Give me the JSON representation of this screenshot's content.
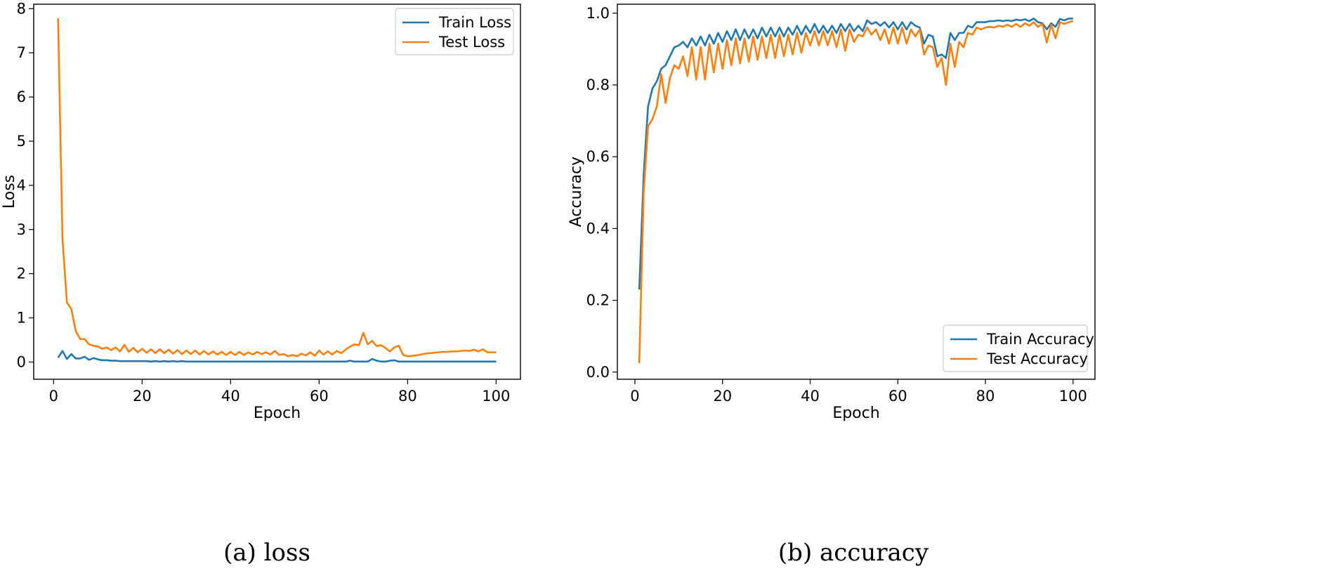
{
  "colors": {
    "train": "#1f77b4",
    "test": "#ff7f0e",
    "axis": "#000000",
    "background": "#ffffff"
  },
  "chart_data": [
    {
      "type": "line",
      "caption": "(a) loss",
      "xlabel": "Epoch",
      "ylabel": "Loss",
      "xlim": [
        -4.5,
        105.5
      ],
      "ylim": [
        -0.39,
        8.1
      ],
      "xticks": [
        0,
        20,
        40,
        60,
        80,
        100
      ],
      "yticks": [
        0,
        1,
        2,
        3,
        4,
        5,
        6,
        7,
        8
      ],
      "legend_position": "upper-right",
      "x": [
        1,
        2,
        3,
        4,
        5,
        6,
        7,
        8,
        9,
        10,
        11,
        12,
        13,
        14,
        15,
        16,
        17,
        18,
        19,
        20,
        21,
        22,
        23,
        24,
        25,
        26,
        27,
        28,
        29,
        30,
        31,
        32,
        33,
        34,
        35,
        36,
        37,
        38,
        39,
        40,
        41,
        42,
        43,
        44,
        45,
        46,
        47,
        48,
        49,
        50,
        51,
        52,
        53,
        54,
        55,
        56,
        57,
        58,
        59,
        60,
        61,
        62,
        63,
        64,
        65,
        66,
        67,
        68,
        69,
        70,
        71,
        72,
        73,
        74,
        75,
        76,
        77,
        78,
        79,
        80,
        81,
        82,
        83,
        84,
        85,
        86,
        87,
        88,
        89,
        90,
        91,
        92,
        93,
        94,
        95,
        96,
        97,
        98,
        99,
        100
      ],
      "series": [
        {
          "name": "Train Loss",
          "color_key": "train",
          "values": [
            0.1,
            0.25,
            0.07,
            0.18,
            0.08,
            0.08,
            0.12,
            0.05,
            0.09,
            0.06,
            0.04,
            0.04,
            0.03,
            0.03,
            0.02,
            0.02,
            0.02,
            0.02,
            0.02,
            0.02,
            0.02,
            0.01,
            0.02,
            0.01,
            0.02,
            0.01,
            0.02,
            0.01,
            0.02,
            0.01,
            0.01,
            0.01,
            0.01,
            0.01,
            0.01,
            0.01,
            0.01,
            0.01,
            0.01,
            0.01,
            0.01,
            0.01,
            0.01,
            0.01,
            0.01,
            0.01,
            0.01,
            0.01,
            0.01,
            0.01,
            0.01,
            0.01,
            0.01,
            0.01,
            0.01,
            0.01,
            0.01,
            0.01,
            0.01,
            0.01,
            0.01,
            0.01,
            0.01,
            0.01,
            0.01,
            0.01,
            0.03,
            0.01,
            0.01,
            0.01,
            0.01,
            0.07,
            0.03,
            0.01,
            0.01,
            0.03,
            0.04,
            0.01,
            0.01,
            0.01,
            0.01,
            0.01,
            0.01,
            0.01,
            0.01,
            0.01,
            0.01,
            0.01,
            0.01,
            0.01,
            0.01,
            0.01,
            0.01,
            0.01,
            0.01,
            0.01,
            0.01,
            0.01,
            0.01,
            0.01
          ]
        },
        {
          "name": "Test Loss",
          "color_key": "test",
          "values": [
            7.78,
            2.8,
            1.35,
            1.2,
            0.7,
            0.52,
            0.52,
            0.4,
            0.37,
            0.35,
            0.3,
            0.33,
            0.27,
            0.33,
            0.24,
            0.39,
            0.23,
            0.32,
            0.22,
            0.3,
            0.21,
            0.29,
            0.2,
            0.29,
            0.2,
            0.28,
            0.19,
            0.27,
            0.18,
            0.26,
            0.18,
            0.26,
            0.17,
            0.25,
            0.17,
            0.24,
            0.17,
            0.23,
            0.16,
            0.23,
            0.16,
            0.23,
            0.16,
            0.22,
            0.17,
            0.23,
            0.18,
            0.22,
            0.17,
            0.25,
            0.16,
            0.18,
            0.13,
            0.16,
            0.13,
            0.19,
            0.15,
            0.22,
            0.14,
            0.26,
            0.17,
            0.24,
            0.17,
            0.25,
            0.2,
            0.28,
            0.35,
            0.4,
            0.38,
            0.66,
            0.4,
            0.48,
            0.36,
            0.38,
            0.32,
            0.24,
            0.33,
            0.37,
            0.16,
            0.13,
            0.14,
            0.15,
            0.17,
            0.19,
            0.2,
            0.21,
            0.22,
            0.23,
            0.23,
            0.24,
            0.24,
            0.25,
            0.26,
            0.25,
            0.28,
            0.24,
            0.29,
            0.22,
            0.22,
            0.22
          ]
        }
      ]
    },
    {
      "type": "line",
      "caption": "(b) accuracy",
      "xlabel": "Epoch",
      "ylabel": "Accuracy",
      "xlim": [
        -4.0,
        105.0
      ],
      "ylim": [
        -0.02,
        1.025
      ],
      "xticks": [
        0,
        20,
        40,
        60,
        80,
        100
      ],
      "yticks": [
        0.0,
        0.2,
        0.4,
        0.6,
        0.8,
        1.0
      ],
      "ytick_labels": [
        "0.0",
        "0.2",
        "0.4",
        "0.6",
        "0.8",
        "1.0"
      ],
      "legend_position": "lower-right",
      "x": [
        1,
        2,
        3,
        4,
        5,
        6,
        7,
        8,
        9,
        10,
        11,
        12,
        13,
        14,
        15,
        16,
        17,
        18,
        19,
        20,
        21,
        22,
        23,
        24,
        25,
        26,
        27,
        28,
        29,
        30,
        31,
        32,
        33,
        34,
        35,
        36,
        37,
        38,
        39,
        40,
        41,
        42,
        43,
        44,
        45,
        46,
        47,
        48,
        49,
        50,
        51,
        52,
        53,
        54,
        55,
        56,
        57,
        58,
        59,
        60,
        61,
        62,
        63,
        64,
        65,
        66,
        67,
        68,
        69,
        70,
        71,
        72,
        73,
        74,
        75,
        76,
        77,
        78,
        79,
        80,
        81,
        82,
        83,
        84,
        85,
        86,
        87,
        88,
        89,
        90,
        91,
        92,
        93,
        94,
        95,
        96,
        97,
        98,
        99,
        100
      ],
      "series": [
        {
          "name": "Train Accuracy",
          "color_key": "train",
          "values": [
            0.23,
            0.55,
            0.74,
            0.79,
            0.81,
            0.845,
            0.855,
            0.88,
            0.905,
            0.91,
            0.92,
            0.905,
            0.93,
            0.91,
            0.935,
            0.91,
            0.94,
            0.915,
            0.945,
            0.92,
            0.95,
            0.925,
            0.955,
            0.925,
            0.955,
            0.93,
            0.955,
            0.93,
            0.96,
            0.935,
            0.96,
            0.935,
            0.96,
            0.935,
            0.96,
            0.94,
            0.965,
            0.94,
            0.965,
            0.945,
            0.97,
            0.945,
            0.965,
            0.945,
            0.965,
            0.945,
            0.97,
            0.95,
            0.97,
            0.95,
            0.965,
            0.95,
            0.98,
            0.97,
            0.975,
            0.965,
            0.975,
            0.96,
            0.975,
            0.955,
            0.975,
            0.955,
            0.975,
            0.965,
            0.96,
            0.915,
            0.94,
            0.935,
            0.88,
            0.885,
            0.875,
            0.945,
            0.925,
            0.945,
            0.945,
            0.965,
            0.96,
            0.975,
            0.975,
            0.975,
            0.978,
            0.978,
            0.98,
            0.978,
            0.98,
            0.978,
            0.982,
            0.98,
            0.983,
            0.978,
            0.985,
            0.975,
            0.972,
            0.955,
            0.972,
            0.962,
            0.984,
            0.98,
            0.985,
            0.985
          ]
        },
        {
          "name": "Test Accuracy",
          "color_key": "test",
          "values": [
            0.025,
            0.5,
            0.685,
            0.705,
            0.74,
            0.83,
            0.75,
            0.82,
            0.855,
            0.845,
            0.88,
            0.825,
            0.905,
            0.815,
            0.905,
            0.815,
            0.915,
            0.835,
            0.915,
            0.845,
            0.925,
            0.855,
            0.93,
            0.86,
            0.93,
            0.865,
            0.935,
            0.87,
            0.935,
            0.875,
            0.94,
            0.875,
            0.94,
            0.88,
            0.94,
            0.885,
            0.945,
            0.89,
            0.945,
            0.91,
            0.95,
            0.91,
            0.95,
            0.91,
            0.95,
            0.905,
            0.955,
            0.895,
            0.955,
            0.92,
            0.94,
            0.935,
            0.96,
            0.94,
            0.955,
            0.925,
            0.955,
            0.915,
            0.96,
            0.915,
            0.96,
            0.915,
            0.955,
            0.935,
            0.955,
            0.885,
            0.91,
            0.905,
            0.85,
            0.875,
            0.8,
            0.915,
            0.85,
            0.92,
            0.905,
            0.945,
            0.94,
            0.96,
            0.955,
            0.96,
            0.962,
            0.96,
            0.965,
            0.962,
            0.968,
            0.962,
            0.97,
            0.962,
            0.972,
            0.965,
            0.975,
            0.962,
            0.97,
            0.918,
            0.968,
            0.93,
            0.975,
            0.97,
            0.975,
            0.978
          ]
        }
      ]
    }
  ]
}
